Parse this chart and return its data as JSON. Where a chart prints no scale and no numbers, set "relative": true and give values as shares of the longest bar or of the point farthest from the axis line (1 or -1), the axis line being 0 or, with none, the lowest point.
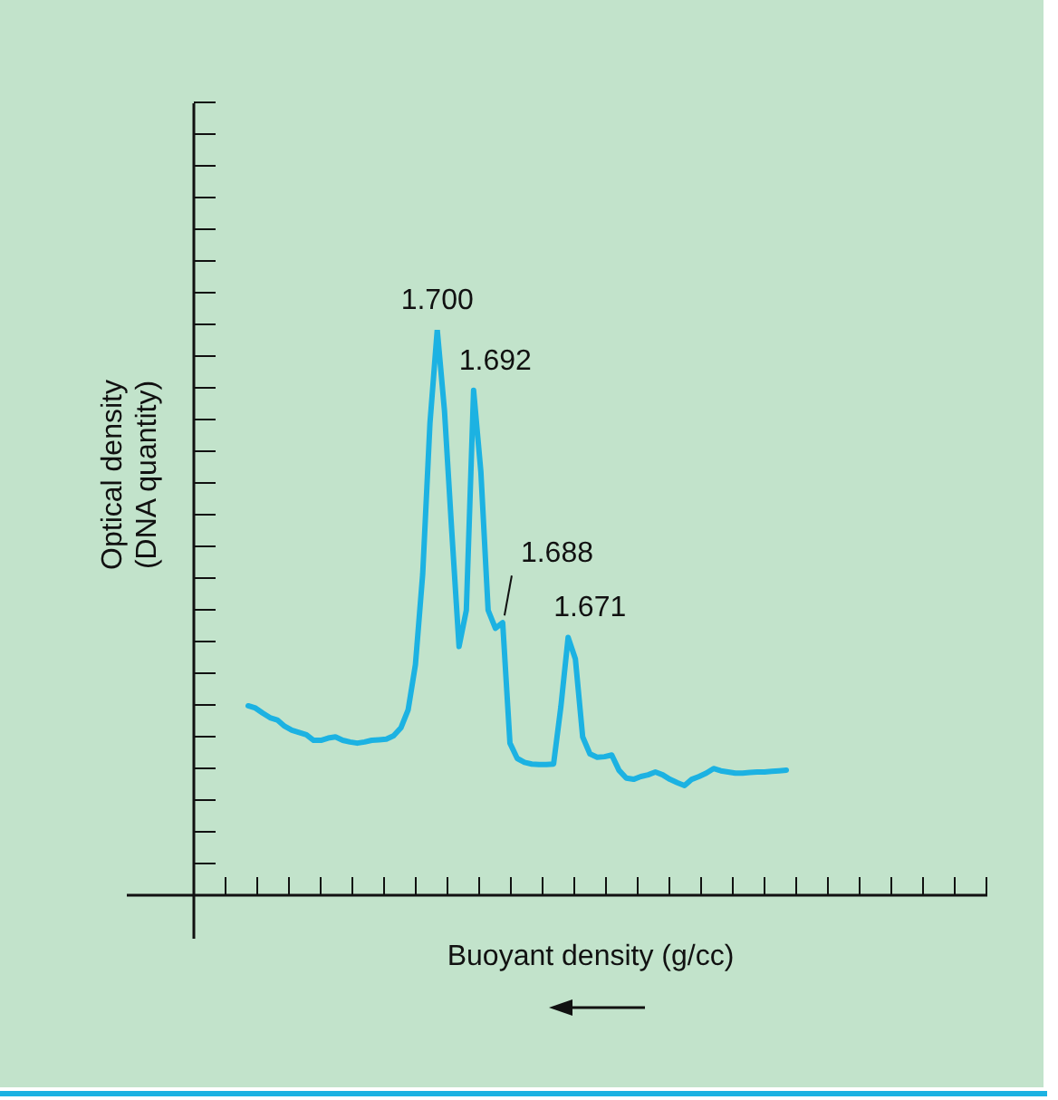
{
  "chart_data": {
    "type": "line",
    "relative": true,
    "xlabel": "Buoyant density (g/cc)",
    "ylabel": "Optical density\n(DNA quantity)",
    "marker": "none",
    "legend": false,
    "annotations": [
      "1.700",
      "1.692",
      "1.688",
      "1.671"
    ],
    "categories": [
      null,
      null,
      null,
      null,
      null,
      null,
      null,
      null,
      null,
      null,
      null,
      null,
      null,
      null,
      null,
      null,
      null,
      null,
      null,
      null,
      null,
      null,
      null,
      null,
      null,
      null,
      null,
      null,
      null,
      null,
      null,
      null,
      null,
      null,
      null,
      null,
      null,
      null,
      null,
      null,
      null,
      null,
      null,
      null,
      null,
      null,
      null,
      null,
      null,
      null,
      null,
      null,
      null,
      null,
      null,
      null,
      null,
      null,
      null,
      null,
      null,
      null,
      null,
      null,
      null,
      null,
      null,
      null,
      null,
      null,
      null,
      null,
      null,
      null,
      null
    ],
    "series": [
      {
        "color": "#1cb2e2",
        "values": [
          0.335,
          0.331,
          0.322,
          0.314,
          0.31,
          0.299,
          0.292,
          0.288,
          0.284,
          0.274,
          0.274,
          0.278,
          0.28,
          0.274,
          0.271,
          0.269,
          0.271,
          0.274,
          0.275,
          0.276,
          0.282,
          0.296,
          0.328,
          0.408,
          0.568,
          0.835,
          1.0,
          0.856,
          0.643,
          0.44,
          0.504,
          0.893,
          0.749,
          0.504,
          0.472,
          0.482,
          0.269,
          0.242,
          0.235,
          0.232,
          0.231,
          0.231,
          0.232,
          0.333,
          0.456,
          0.418,
          0.28,
          0.25,
          0.244,
          0.245,
          0.248,
          0.221,
          0.207,
          0.205,
          0.21,
          0.213,
          0.218,
          0.213,
          0.205,
          0.199,
          0.194,
          0.205,
          0.21,
          0.216,
          0.224,
          0.22,
          0.218,
          0.216,
          0.216,
          0.217,
          0.218,
          0.218,
          0.219,
          0.22,
          0.221
        ]
      }
    ]
  }
}
